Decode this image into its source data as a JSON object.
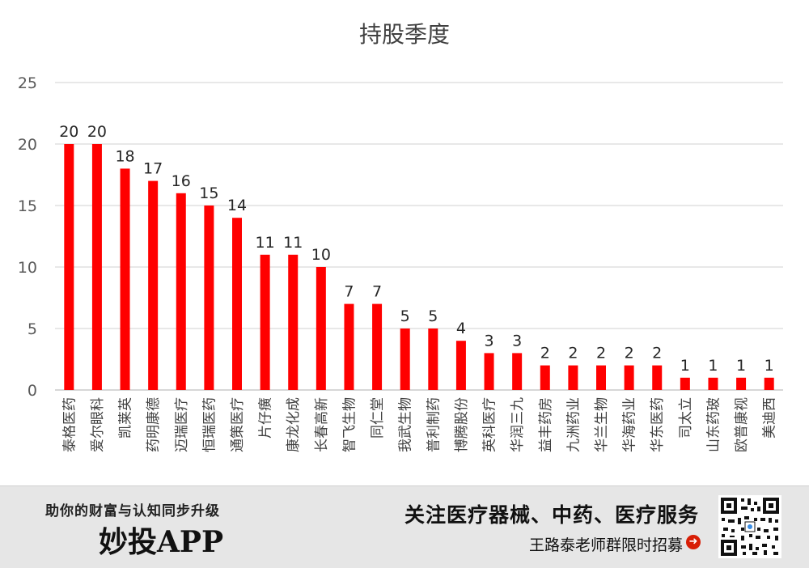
{
  "chart_data": {
    "type": "bar",
    "title": "持股季度",
    "categories": [
      "泰格医药",
      "爱尔眼科",
      "凯莱英",
      "药明康德",
      "迈瑞医疗",
      "恒瑞医药",
      "通策医疗",
      "片仔癀",
      "康龙化成",
      "长春高新",
      "智飞生物",
      "同仁堂",
      "我武生物",
      "普利制药",
      "博腾股份",
      "英科医疗",
      "华润三九",
      "益丰药房",
      "九洲药业",
      "华兰生物",
      "华海药业",
      "华东医药",
      "司太立",
      "山东药玻",
      "欧普康视",
      "美迪西"
    ],
    "values": [
      20,
      20,
      18,
      17,
      16,
      15,
      14,
      11,
      11,
      10,
      7,
      7,
      5,
      5,
      4,
      3,
      3,
      2,
      2,
      2,
      2,
      2,
      1,
      1,
      1,
      1
    ],
    "yticks": [
      0,
      5,
      10,
      15,
      20,
      25
    ],
    "ylim": [
      0,
      25
    ],
    "xlabel": "",
    "ylabel": "",
    "grid": true,
    "bar_color": "#ff0000",
    "grid_color": "#d9d9d9"
  },
  "footer": {
    "slogan": "助你的财富与认知同步升级",
    "brand": "妙投APP",
    "follow_text": "关注医疗器械、中药、医疗服务",
    "recruit_text": "王路泰老师群限时招募",
    "arrow_icon": "arrow-circle-icon",
    "arrow_color": "#d81e06"
  }
}
